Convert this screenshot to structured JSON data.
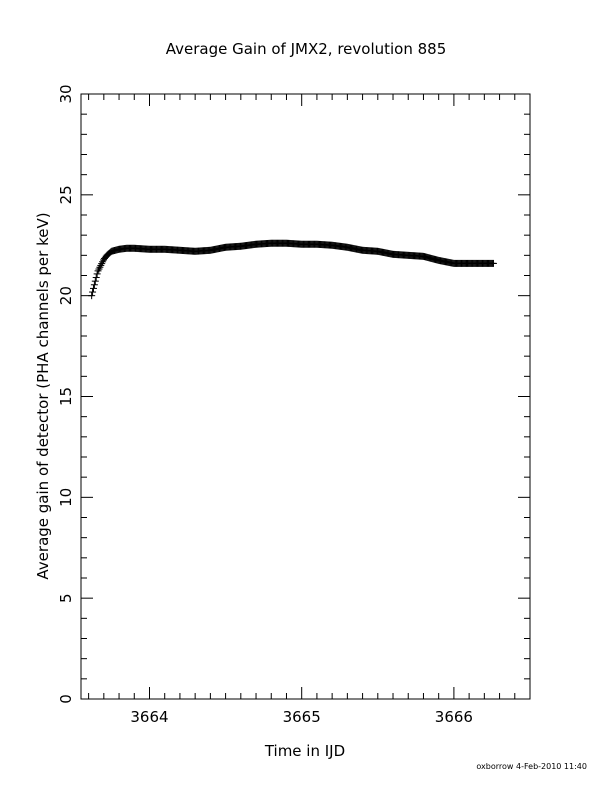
{
  "chart_data": {
    "type": "scatter",
    "title": "Average Gain of JMX2, revolution 885",
    "xlabel": "Time in IJD",
    "ylabel": "Average gain of detector (PHA channels per keV)",
    "xlim": [
      3663.55,
      3666.5
    ],
    "ylim": [
      0,
      30
    ],
    "x_ticks": [
      "3664",
      "3665",
      "3666"
    ],
    "y_ticks": [
      "0",
      "5",
      "10",
      "15",
      "20",
      "25",
      "30"
    ],
    "marker": "plus",
    "color": "#000000",
    "grid": false,
    "points_anchor": {
      "x": [
        3663.62,
        3663.63,
        3663.64,
        3663.65,
        3663.66,
        3663.68,
        3663.7,
        3663.72,
        3663.75,
        3663.8,
        3663.85,
        3663.9,
        3664.0,
        3664.1,
        3664.2,
        3664.3,
        3664.4,
        3664.5,
        3664.6,
        3664.7,
        3664.8,
        3664.9,
        3665.0,
        3665.1,
        3665.2,
        3665.3,
        3665.4,
        3665.5,
        3665.6,
        3665.7,
        3665.8,
        3665.9,
        3666.0,
        3666.1,
        3666.2,
        3666.26
      ],
      "y": [
        20.0,
        20.3,
        20.6,
        20.9,
        21.2,
        21.5,
        21.8,
        22.0,
        22.2,
        22.3,
        22.35,
        22.35,
        22.3,
        22.3,
        22.25,
        22.2,
        22.25,
        22.4,
        22.45,
        22.55,
        22.6,
        22.6,
        22.55,
        22.55,
        22.5,
        22.4,
        22.25,
        22.2,
        22.05,
        22.0,
        21.95,
        21.75,
        21.6,
        21.6,
        21.6,
        21.6
      ]
    }
  },
  "footer": {
    "stamp": "oxborrow   4-Feb-2010 11:40"
  }
}
